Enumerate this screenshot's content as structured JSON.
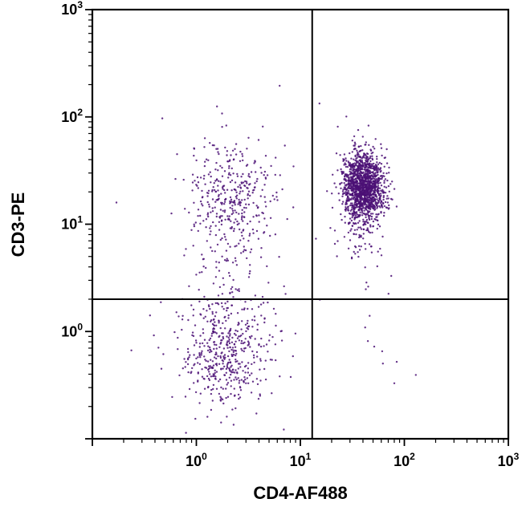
{
  "chart_data": {
    "type": "scatter",
    "title": "",
    "xlabel": "CD4-AF488",
    "ylabel": "CD3-PE",
    "x_scale": "log",
    "y_scale": "log",
    "x_range": [
      0.1,
      1000
    ],
    "y_range": [
      0.1,
      1000
    ],
    "tick_exponents": [
      0,
      1,
      2,
      3
    ],
    "point_color": "#4b1076",
    "gates": {
      "x": 13,
      "y": 2
    },
    "legend": "none",
    "grid": false,
    "populations": [
      {
        "name": "CD3+CD4+ dense cluster (upper right)",
        "center": [
          40,
          23
        ],
        "sd_log": [
          0.1,
          0.16
        ],
        "n": 1400
      },
      {
        "name": "CD3+CD4+ lower tail",
        "center": [
          38,
          12
        ],
        "sd_log": [
          0.12,
          0.28
        ],
        "n": 140
      },
      {
        "name": "CD3+CD4- cluster (upper left)",
        "center": [
          2.2,
          17
        ],
        "sd_log": [
          0.22,
          0.28
        ],
        "n": 380
      },
      {
        "name": "CD3-CD4- cluster (lower left)",
        "center": [
          1.9,
          0.65
        ],
        "sd_log": [
          0.22,
          0.26
        ],
        "n": 480
      },
      {
        "name": "left mid tail",
        "center": [
          2.1,
          3.5
        ],
        "sd_log": [
          0.22,
          0.22
        ],
        "n": 50
      },
      {
        "name": "lower right scatter",
        "center": [
          40,
          0.8
        ],
        "sd_log": [
          0.25,
          0.3
        ],
        "n": 9
      },
      {
        "name": "sparse background",
        "center": [
          2.5,
          6
        ],
        "sd_log": [
          0.55,
          0.75
        ],
        "n": 30
      }
    ]
  }
}
